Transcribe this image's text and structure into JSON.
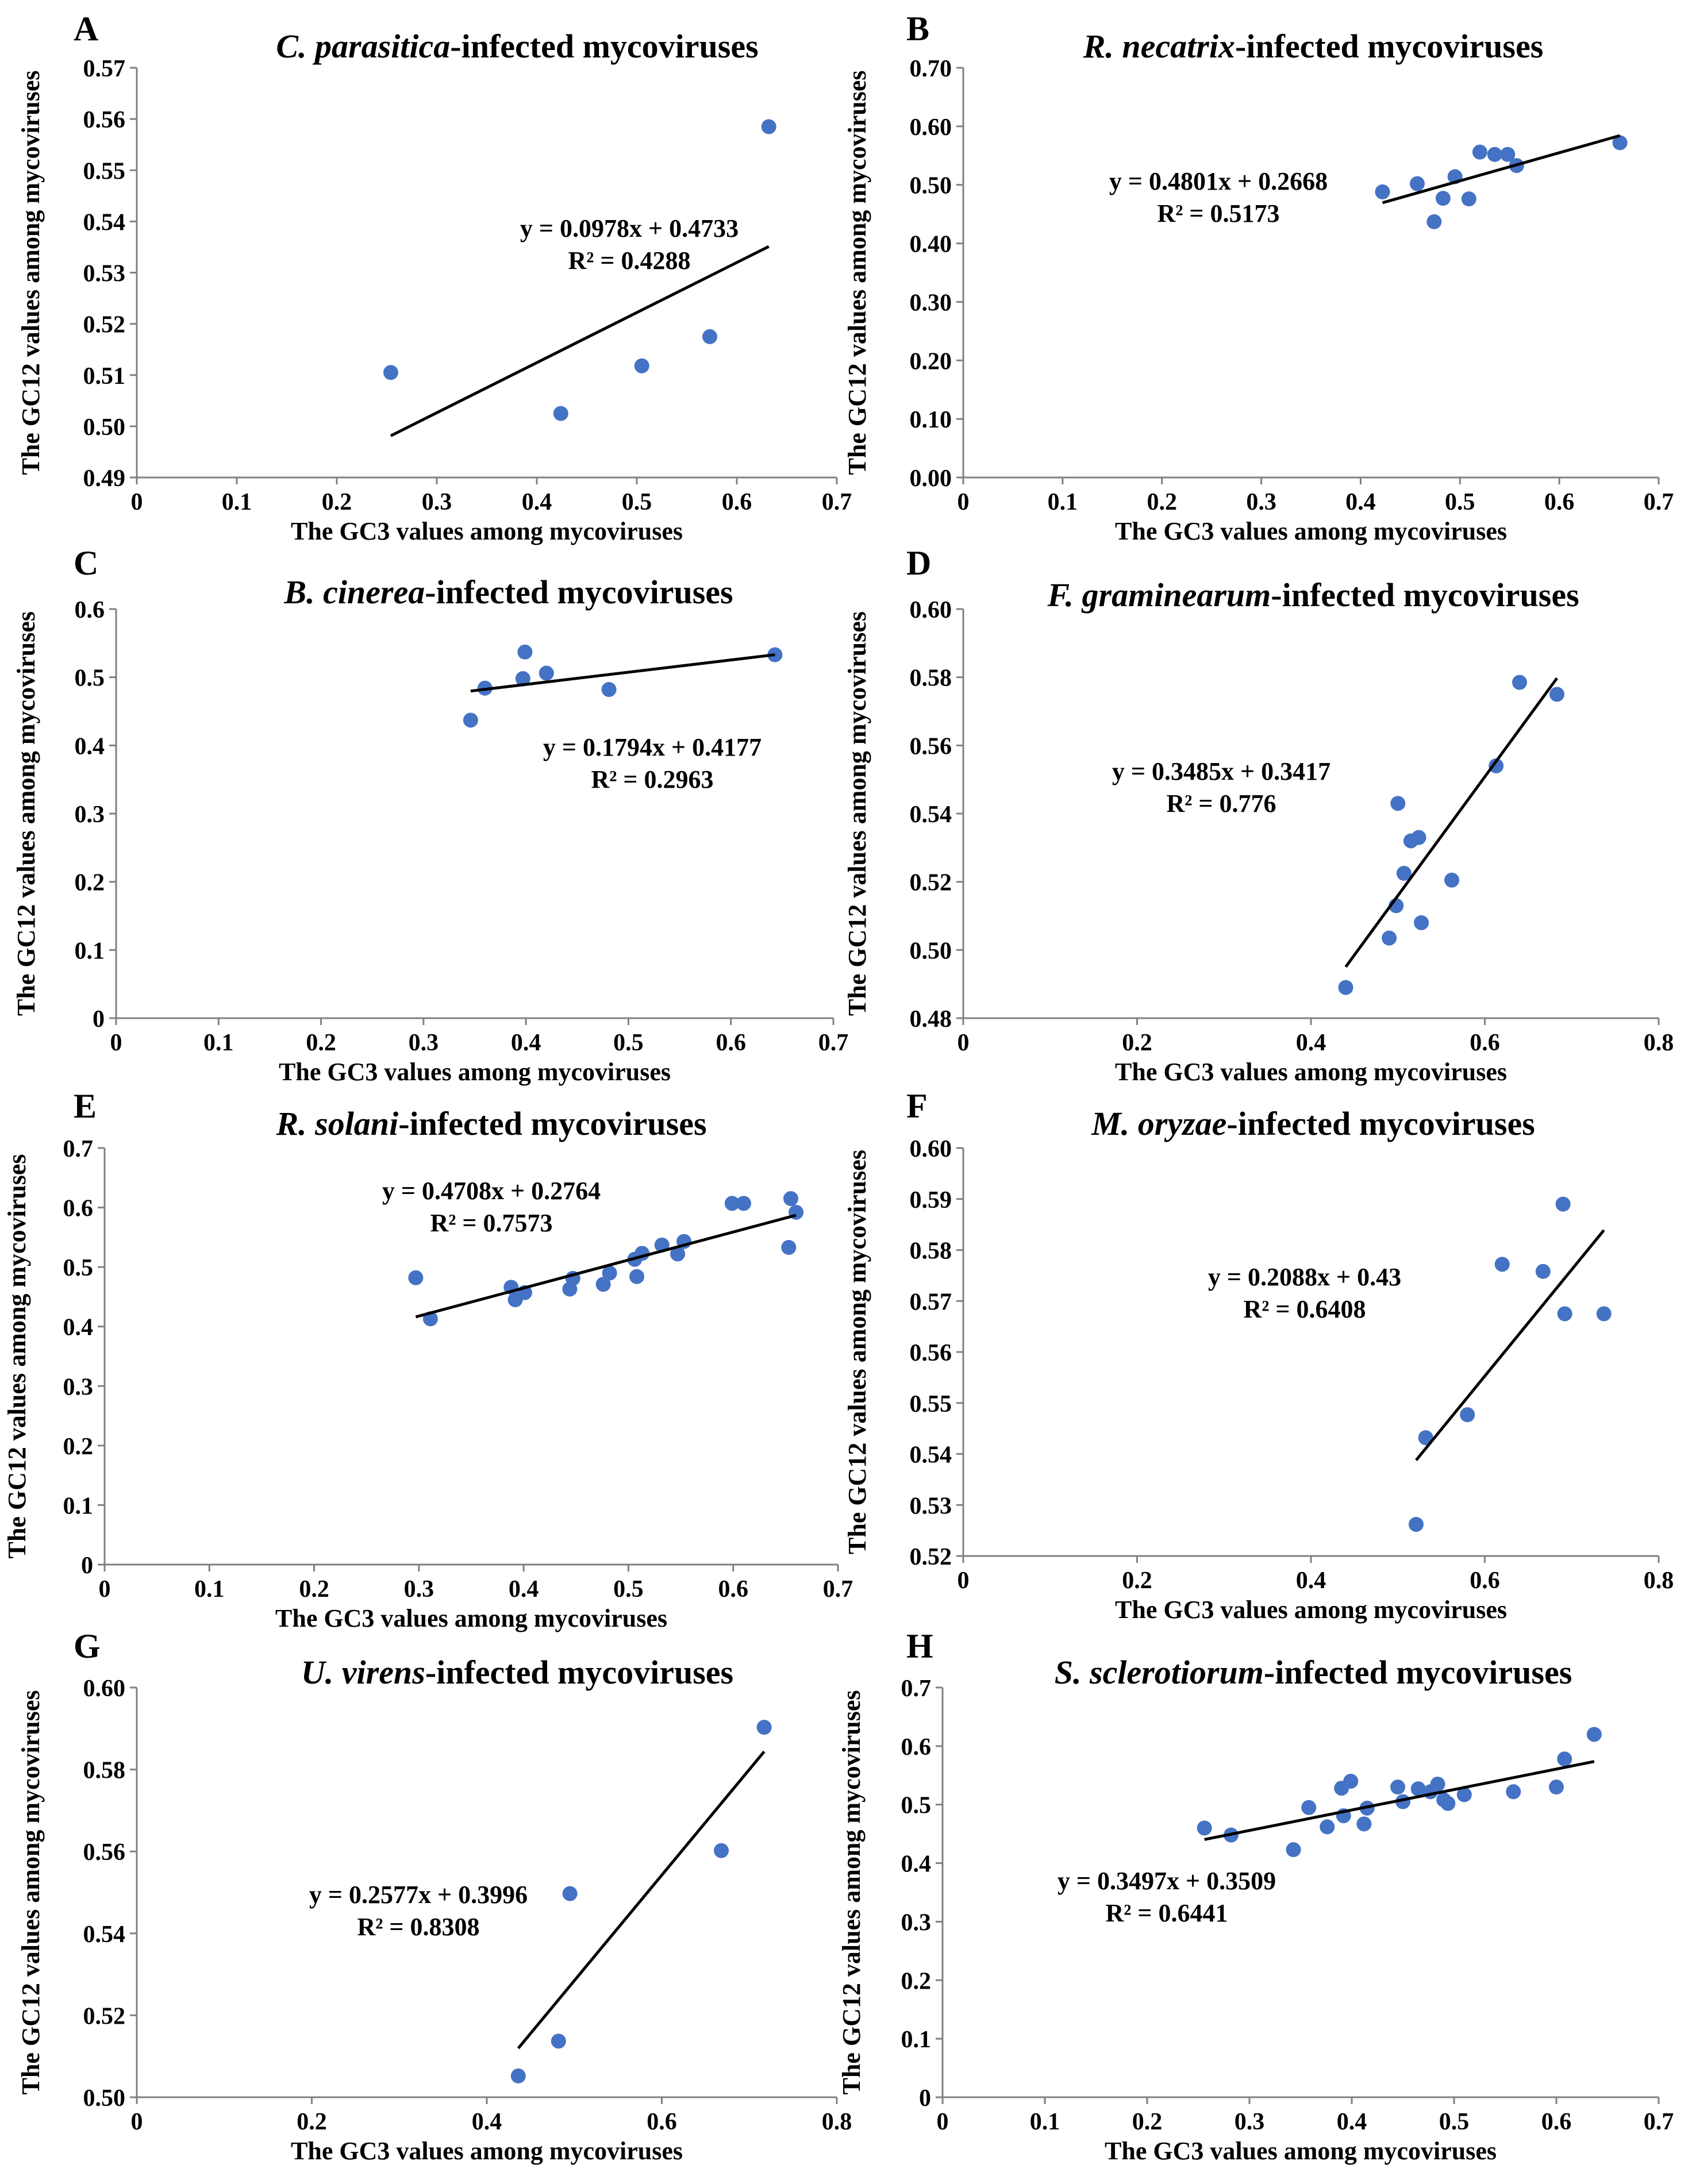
{
  "colors": {
    "point": "#4472C4",
    "line": "#000000",
    "axis": "#808080"
  },
  "chart_data": [
    {
      "type": "scatter",
      "letter": "A",
      "species": "C. parasitica",
      "title_suffix": "-infected mycoviruses",
      "xlabel": "The GC3 values among mycoviruses",
      "ylabel": "The GC12 values among mycoviruses",
      "xlim": [
        0,
        0.7
      ],
      "ylim": [
        0.49,
        0.57
      ],
      "xticks": [
        "0",
        "0.1",
        "0.2",
        "0.3",
        "0.4",
        "0.5",
        "0.6",
        "0.7"
      ],
      "yticks": [
        "0.49",
        "0.50",
        "0.51",
        "0.52",
        "0.53",
        "0.54",
        "0.55",
        "0.56",
        "0.57"
      ],
      "points": [
        [
          0.254,
          0.5105
        ],
        [
          0.424,
          0.5025
        ],
        [
          0.505,
          0.5118
        ],
        [
          0.573,
          0.5175
        ],
        [
          0.632,
          0.5585
        ]
      ],
      "trendline": {
        "slope": 0.0978,
        "intercept": 0.4733,
        "x0": 0.254,
        "x1": 0.632
      },
      "equation": "y = 0.0978x + 0.4733",
      "r2": "R² = 0.4288"
    },
    {
      "type": "scatter",
      "letter": "B",
      "species": "R. necatrix",
      "title_suffix": "-infected mycoviruses",
      "xlabel": "The GC3 values among mycoviruses",
      "ylabel": "The GC12 values among mycoviruses",
      "xlim": [
        0,
        0.7
      ],
      "ylim": [
        0,
        0.7
      ],
      "xticks": [
        "0",
        "0.1",
        "0.2",
        "0.3",
        "0.4",
        "0.5",
        "0.6",
        "0.7"
      ],
      "yticks": [
        "0.00",
        "0.10",
        "0.20",
        "0.30",
        "0.40",
        "0.50",
        "0.60",
        "0.70"
      ],
      "points": [
        [
          0.422,
          0.488
        ],
        [
          0.457,
          0.502
        ],
        [
          0.474,
          0.437
        ],
        [
          0.483,
          0.477
        ],
        [
          0.495,
          0.514
        ],
        [
          0.509,
          0.476
        ],
        [
          0.52,
          0.556
        ],
        [
          0.535,
          0.552
        ],
        [
          0.548,
          0.552
        ],
        [
          0.557,
          0.533
        ],
        [
          0.661,
          0.572
        ]
      ],
      "trendline": {
        "slope": 0.4801,
        "intercept": 0.2668,
        "x0": 0.422,
        "x1": 0.661
      },
      "equation": "y = 0.4801x + 0.2668",
      "r2": "R² = 0.5173"
    },
    {
      "type": "scatter",
      "letter": "C",
      "species": "B. cinerea",
      "title_suffix": "-infected mycoviruses",
      "xlabel": "The GC3 values among mycoviruses",
      "ylabel": "The GC12 values among mycoviruses",
      "xlim": [
        0,
        0.7
      ],
      "ylim": [
        0,
        0.6
      ],
      "xticks": [
        "0",
        "0.1",
        "0.2",
        "0.3",
        "0.4",
        "0.5",
        "0.6",
        "0.7"
      ],
      "yticks": [
        "0",
        "0.1",
        "0.2",
        "0.3",
        "0.4",
        "0.5",
        "0.6"
      ],
      "points": [
        [
          0.346,
          0.437
        ],
        [
          0.36,
          0.484
        ],
        [
          0.397,
          0.498
        ],
        [
          0.399,
          0.537
        ],
        [
          0.42,
          0.506
        ],
        [
          0.481,
          0.482
        ],
        [
          0.643,
          0.533
        ]
      ],
      "trendline": {
        "slope": 0.1794,
        "intercept": 0.4177,
        "x0": 0.346,
        "x1": 0.643
      },
      "equation": "y = 0.1794x + 0.4177",
      "r2": "R² = 0.2963"
    },
    {
      "type": "scatter",
      "letter": "D",
      "species": "F. graminearum",
      "title_suffix": "-infected mycoviruses",
      "xlabel": "The GC3 values among mycoviruses",
      "ylabel": "The GC12 values among mycoviruses",
      "xlim": [
        0,
        0.8
      ],
      "ylim": [
        0.48,
        0.6
      ],
      "xticks": [
        "0",
        "0.2",
        "0.4",
        "0.6",
        "0.8"
      ],
      "yticks": [
        "0.48",
        "0.50",
        "0.52",
        "0.54",
        "0.56",
        "0.58",
        "0.60"
      ],
      "points": [
        [
          0.44,
          0.489
        ],
        [
          0.49,
          0.5035
        ],
        [
          0.498,
          0.513
        ],
        [
          0.5,
          0.543
        ],
        [
          0.507,
          0.5225
        ],
        [
          0.515,
          0.532
        ],
        [
          0.524,
          0.533
        ],
        [
          0.527,
          0.508
        ],
        [
          0.562,
          0.5205
        ],
        [
          0.613,
          0.554
        ],
        [
          0.64,
          0.5785
        ],
        [
          0.683,
          0.575
        ]
      ],
      "trendline": {
        "slope": 0.3485,
        "intercept": 0.3417,
        "x0": 0.44,
        "x1": 0.683
      },
      "equation": "y = 0.3485x + 0.3417",
      "r2": "R² = 0.776"
    },
    {
      "type": "scatter",
      "letter": "E",
      "species": "R. solani",
      "title_suffix": "-infected mycoviruses",
      "xlabel": "The GC3 values among mycoviruses",
      "ylabel": "The GC12 values among mycoviruses",
      "xlim": [
        0,
        0.7
      ],
      "ylim": [
        0,
        0.7
      ],
      "xticks": [
        "0",
        "0.1",
        "0.2",
        "0.3",
        "0.4",
        "0.5",
        "0.6",
        "0.7"
      ],
      "yticks": [
        "0",
        "0.1",
        "0.2",
        "0.3",
        "0.4",
        "0.5",
        "0.6",
        "0.7"
      ],
      "points": [
        [
          0.297,
          0.482
        ],
        [
          0.311,
          0.413
        ],
        [
          0.388,
          0.466
        ],
        [
          0.392,
          0.445
        ],
        [
          0.401,
          0.457
        ],
        [
          0.444,
          0.463
        ],
        [
          0.447,
          0.481
        ],
        [
          0.476,
          0.471
        ],
        [
          0.482,
          0.49
        ],
        [
          0.506,
          0.513
        ],
        [
          0.508,
          0.484
        ],
        [
          0.513,
          0.523
        ],
        [
          0.532,
          0.537
        ],
        [
          0.547,
          0.522
        ],
        [
          0.553,
          0.543
        ],
        [
          0.599,
          0.607
        ],
        [
          0.61,
          0.607
        ],
        [
          0.653,
          0.533
        ],
        [
          0.655,
          0.615
        ],
        [
          0.66,
          0.592
        ]
      ],
      "trendline": {
        "slope": 0.4708,
        "intercept": 0.2764,
        "x0": 0.297,
        "x1": 0.66
      },
      "equation": "y = 0.4708x + 0.2764",
      "r2": "R² = 0.7573"
    },
    {
      "type": "scatter",
      "letter": "F",
      "species": "M. oryzae",
      "title_suffix": "-infected mycoviruses",
      "xlabel": "The GC3 values among mycoviruses",
      "ylabel": "The GC12 values among mycoviruses",
      "xlim": [
        0,
        0.8
      ],
      "ylim": [
        0.52,
        0.6
      ],
      "xticks": [
        "0",
        "0.2",
        "0.4",
        "0.6",
        "0.8"
      ],
      "yticks": [
        "0.52",
        "0.53",
        "0.54",
        "0.55",
        "0.56",
        "0.57",
        "0.58",
        "0.59",
        "0.60"
      ],
      "points": [
        [
          0.521,
          0.5262
        ],
        [
          0.532,
          0.5432
        ],
        [
          0.58,
          0.5477
        ],
        [
          0.62,
          0.5772
        ],
        [
          0.667,
          0.5758
        ],
        [
          0.69,
          0.589
        ],
        [
          0.692,
          0.5675
        ],
        [
          0.737,
          0.5675
        ]
      ],
      "trendline": {
        "slope": 0.2088,
        "intercept": 0.43,
        "x0": 0.521,
        "x1": 0.737
      },
      "equation": "y = 0.2088x + 0.43",
      "r2": "R² = 0.6408"
    },
    {
      "type": "scatter",
      "letter": "G",
      "species": "U. virens",
      "title_suffix": "-infected mycoviruses",
      "xlabel": "The GC3 values among mycoviruses",
      "ylabel": "The GC12 values among mycoviruses",
      "xlim": [
        0,
        0.8
      ],
      "ylim": [
        0.5,
        0.6
      ],
      "xticks": [
        "0",
        "0.2",
        "0.4",
        "0.6",
        "0.8"
      ],
      "yticks": [
        "0.50",
        "0.52",
        "0.54",
        "0.56",
        "0.58",
        "0.60"
      ],
      "points": [
        [
          0.436,
          0.5052
        ],
        [
          0.482,
          0.5137
        ],
        [
          0.495,
          0.5497
        ],
        [
          0.668,
          0.5602
        ],
        [
          0.717,
          0.5903
        ]
      ],
      "trendline": {
        "slope": 0.2577,
        "intercept": 0.3996,
        "x0": 0.436,
        "x1": 0.717
      },
      "equation": "y = 0.2577x + 0.3996",
      "r2": "R² = 0.8308"
    },
    {
      "type": "scatter",
      "letter": "H",
      "species": "S. sclerotiorum",
      "title_suffix": "-infected mycoviruses",
      "xlabel": "The GC3 values among mycoviruses",
      "ylabel": "The GC12 values among mycoviruses",
      "xlim": [
        0,
        0.7
      ],
      "ylim": [
        0,
        0.7
      ],
      "xticks": [
        "0",
        "0.1",
        "0.2",
        "0.3",
        "0.4",
        "0.5",
        "0.6",
        "0.7"
      ],
      "yticks": [
        "0",
        "0.1",
        "0.2",
        "0.3",
        "0.4",
        "0.5",
        "0.6",
        "0.7"
      ],
      "points": [
        [
          0.256,
          0.46
        ],
        [
          0.282,
          0.448
        ],
        [
          0.343,
          0.423
        ],
        [
          0.358,
          0.495
        ],
        [
          0.376,
          0.462
        ],
        [
          0.39,
          0.528
        ],
        [
          0.392,
          0.481
        ],
        [
          0.399,
          0.54
        ],
        [
          0.412,
          0.467
        ],
        [
          0.415,
          0.494
        ],
        [
          0.445,
          0.53
        ],
        [
          0.45,
          0.505
        ],
        [
          0.465,
          0.527
        ],
        [
          0.477,
          0.522
        ],
        [
          0.484,
          0.535
        ],
        [
          0.49,
          0.508
        ],
        [
          0.494,
          0.502
        ],
        [
          0.51,
          0.517
        ],
        [
          0.558,
          0.522
        ],
        [
          0.6,
          0.53
        ],
        [
          0.608,
          0.578
        ],
        [
          0.637,
          0.62
        ]
      ],
      "trendline": {
        "slope": 0.3497,
        "intercept": 0.3509,
        "x0": 0.256,
        "x1": 0.637
      },
      "equation": "y = 0.3497x + 0.3509",
      "r2": "R² = 0.6441"
    }
  ]
}
